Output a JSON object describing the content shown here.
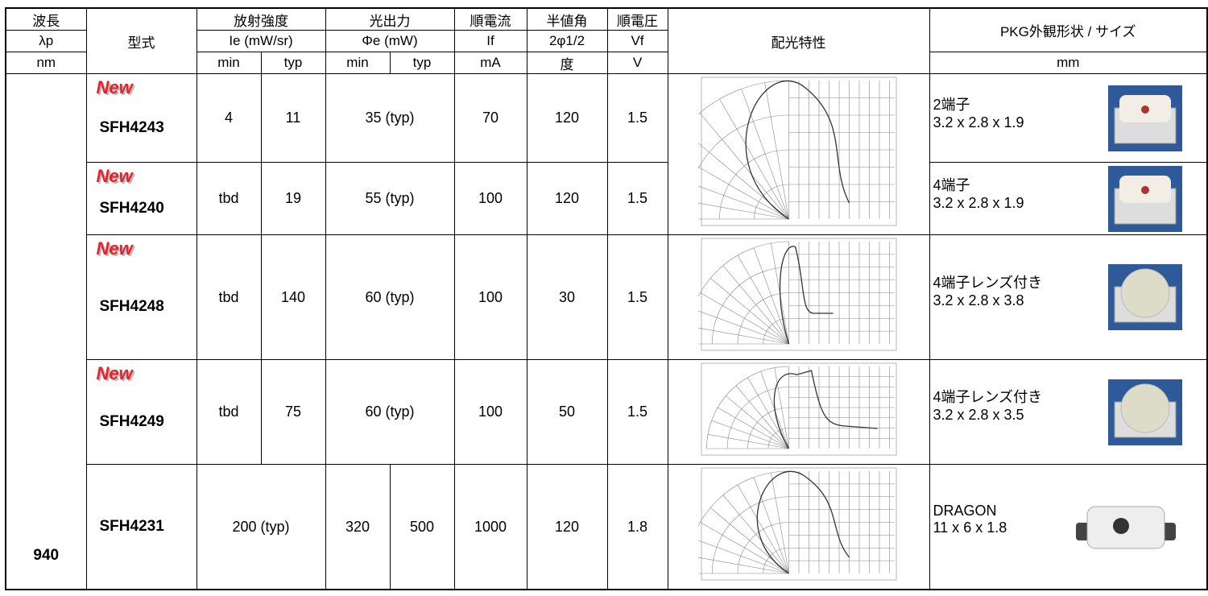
{
  "header": {
    "rows": [
      [
        "波長",
        "型式",
        "放射強度",
        "光出力",
        "順電流",
        "半値角",
        "順電圧",
        "配光特性",
        "PKG外観形状 / サイズ"
      ],
      [
        "λp",
        "Ie (mW/sr)",
        "Φe (mW)",
        "If",
        "2φ1/2",
        "Vf"
      ],
      [
        "nm",
        "min",
        "typ",
        "min",
        "typ",
        "mA",
        "度",
        "V",
        "mm"
      ]
    ]
  },
  "table": {
    "wavelength": "940",
    "rows": [
      {
        "badge": "New",
        "model": "SFH4243",
        "cells": [
          "4",
          "11",
          "35 (typ)",
          "70",
          "120",
          "1.5"
        ],
        "package": [
          "2端子",
          "3.2 x 2.8 x 1.9"
        ]
      },
      {
        "badge": "New",
        "model": "SFH4240",
        "cells": [
          "tbd",
          "19",
          "55 (typ)",
          "100",
          "120",
          "1.5"
        ],
        "package": [
          "4端子",
          "3.2 x 2.8 x 1.9"
        ]
      },
      {
        "badge": "New",
        "model": "SFH4248",
        "cells": [
          "tbd",
          "140",
          "60 (typ)",
          "100",
          "30",
          "1.5"
        ],
        "package": [
          "4端子レンズ付き",
          "3.2 x 2.8 x 3.8"
        ]
      },
      {
        "badge": "New",
        "model": "SFH4249",
        "cells": [
          "tbd",
          "75",
          "60 (typ)",
          "100",
          "50",
          "1.5"
        ],
        "package": [
          "4端子レンズ付き",
          "3.2 x 2.8 x 3.5"
        ]
      },
      {
        "model": "SFH4231",
        "cells": [
          "200 (typ)",
          "320",
          "500",
          "1000",
          "120",
          "1.8"
        ],
        "package": [
          "DRAGON",
          "11 x 6 x 1.8"
        ]
      }
    ]
  }
}
